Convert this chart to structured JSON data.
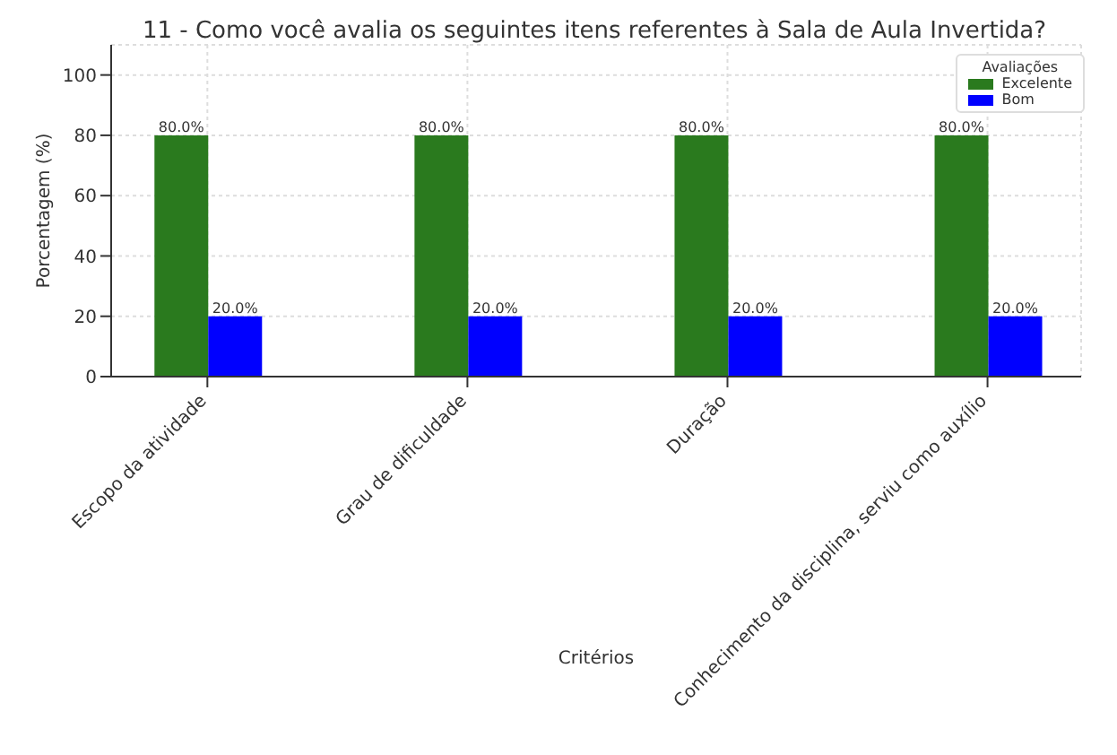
{
  "chart_data": {
    "type": "bar",
    "title": "11 - Como você avalia os seguintes itens referentes à Sala de Aula Invertida?",
    "xlabel": "Critérios",
    "ylabel": "Porcentagem (%)",
    "legend_title": "Avaliações",
    "categories": [
      "Escopo da atividade",
      "Grau de dificuldade",
      "Duração",
      "Conhecimento da disciplina, serviu como auxílio"
    ],
    "series": [
      {
        "name": "Excelente",
        "color": "#2a7a1e",
        "values": [
          80,
          80,
          80,
          80
        ],
        "value_labels": [
          "80.0%",
          "80.0%",
          "80.0%",
          "80.0%"
        ]
      },
      {
        "name": "Bom",
        "color": "#0000ff",
        "values": [
          20,
          20,
          20,
          20
        ],
        "value_labels": [
          "20.0%",
          "20.0%",
          "20.0%",
          "20.0%"
        ]
      }
    ],
    "ylim": [
      0,
      110
    ],
    "yticks": [
      0,
      20,
      40,
      60,
      80,
      100
    ],
    "grid": true,
    "legend": "top right"
  }
}
